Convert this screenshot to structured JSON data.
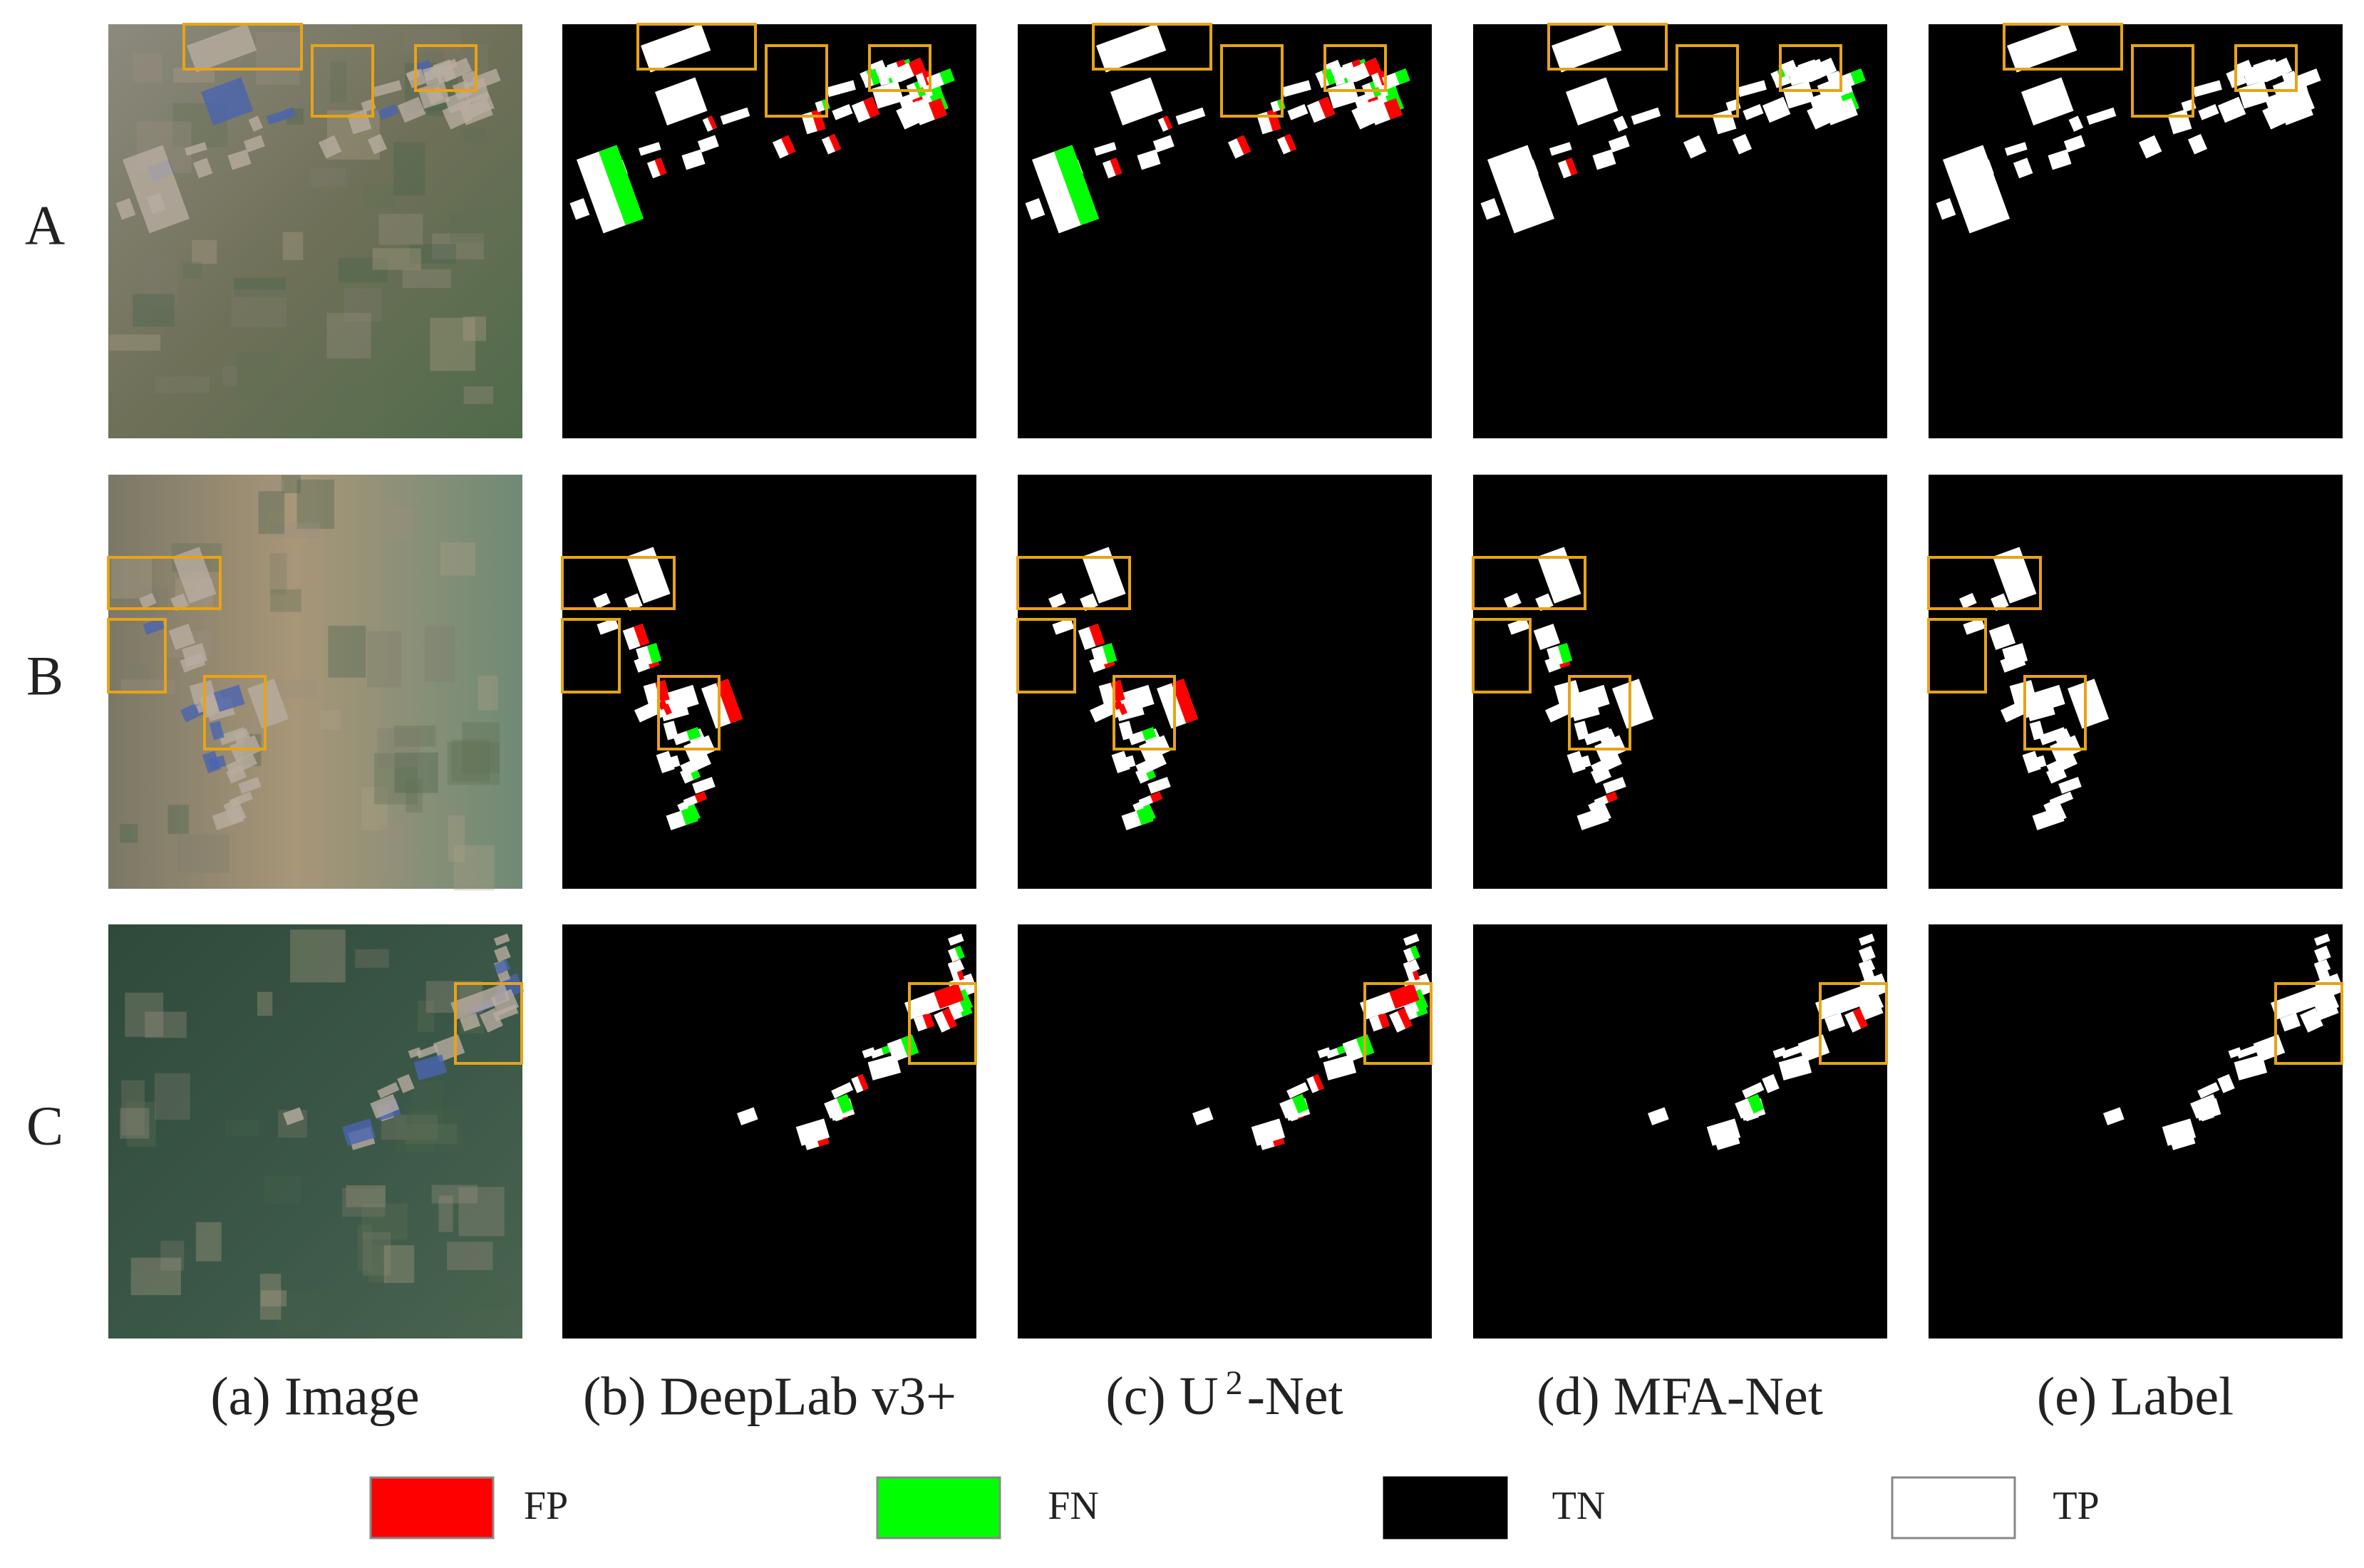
{
  "rows": [
    "A",
    "B",
    "C"
  ],
  "columns": [
    {
      "caption": "(a) Image"
    },
    {
      "caption": "(b) DeepLab v3+"
    },
    {
      "caption_parts": {
        "prefix": "(c) U",
        "sup": "2",
        "suffix": "-Net"
      }
    },
    {
      "caption": "(d) MFA-Net"
    },
    {
      "caption": "(e) Label"
    }
  ],
  "legend": [
    "FP",
    "FN",
    "TN",
    "TP"
  ]
}
